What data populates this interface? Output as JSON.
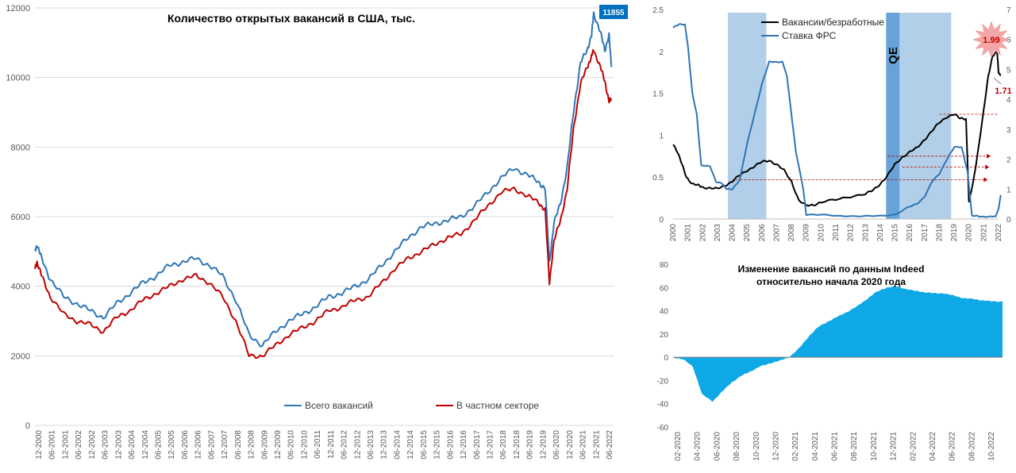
{
  "chart_data": [
    {
      "type": "line",
      "title": "Количество открытых вакансий в США, тыс.",
      "xlabel": "",
      "ylabel": "",
      "ylim": [
        0,
        12000
      ],
      "yticks": [
        0,
        2000,
        4000,
        6000,
        8000,
        10000,
        12000
      ],
      "xtick_labels": [
        "12-2000",
        "06-2001",
        "12-2001",
        "06-2002",
        "12-2002",
        "06-2003",
        "12-2003",
        "06-2004",
        "12-2004",
        "06-2005",
        "12-2005",
        "06-2006",
        "12-2006",
        "06-2007",
        "12-2007",
        "06-2008",
        "12-2008",
        "06-2009",
        "12-2009",
        "06-2010",
        "12-2010",
        "06-2011",
        "12-2011",
        "06-2012",
        "12-2012",
        "06-2013",
        "12-2013",
        "06-2014",
        "12-2014",
        "06-2015",
        "12-2015",
        "06-2016",
        "12-2016",
        "06-2017",
        "12-2017",
        "06-2018",
        "12-2018",
        "06-2019",
        "12-2019",
        "06-2020",
        "12-2020",
        "06-2021",
        "12-2021",
        "06-2022"
      ],
      "grid": true,
      "legend_position": "bottom-center",
      "annotation": {
        "label": "11855",
        "color": "#0070c0"
      },
      "series": [
        {
          "name": "Всего вакансий",
          "color": "#2e75b6",
          "x": [
            2000.92,
            2001.0,
            2001.17,
            2001.5,
            2002.0,
            2002.5,
            2003.0,
            2003.5,
            2004.0,
            2004.5,
            2005.0,
            2005.5,
            2006.0,
            2006.5,
            2007.0,
            2007.5,
            2008.0,
            2008.5,
            2009.0,
            2009.5,
            2010.0,
            2010.5,
            2011.0,
            2011.5,
            2012.0,
            2012.5,
            2013.0,
            2013.5,
            2014.0,
            2014.5,
            2015.0,
            2015.5,
            2016.0,
            2016.5,
            2017.0,
            2017.5,
            2018.0,
            2018.5,
            2019.0,
            2019.5,
            2019.92,
            2020.17,
            2020.33,
            2020.5,
            2020.75,
            2021.0,
            2021.25,
            2021.5,
            2021.75,
            2021.92,
            2022.0,
            2022.25,
            2022.42,
            2022.58,
            2022.67
          ],
          "values": [
            5000,
            5200,
            4800,
            4200,
            3700,
            3500,
            3300,
            3100,
            3500,
            3800,
            4100,
            4300,
            4600,
            4700,
            4800,
            4600,
            4300,
            3600,
            2600,
            2300,
            2700,
            3000,
            3200,
            3400,
            3700,
            3800,
            4000,
            4200,
            4600,
            5000,
            5400,
            5700,
            5800,
            5900,
            6000,
            6300,
            6700,
            7100,
            7400,
            7200,
            7000,
            6800,
            4700,
            5800,
            6400,
            7400,
            9100,
            10400,
            10800,
            11200,
            11855,
            11300,
            10800,
            11200,
            10300
          ]
        },
        {
          "name": "В частном секторе",
          "color": "#c00000",
          "x": [
            2000.92,
            2001.0,
            2001.17,
            2001.5,
            2002.0,
            2002.5,
            2003.0,
            2003.5,
            2004.0,
            2004.5,
            2005.0,
            2005.5,
            2006.0,
            2006.5,
            2007.0,
            2007.5,
            2008.0,
            2008.5,
            2009.0,
            2009.5,
            2010.0,
            2010.5,
            2011.0,
            2011.5,
            2012.0,
            2012.5,
            2013.0,
            2013.5,
            2014.0,
            2014.5,
            2015.0,
            2015.5,
            2016.0,
            2016.5,
            2017.0,
            2017.5,
            2018.0,
            2018.5,
            2019.0,
            2019.5,
            2019.92,
            2020.17,
            2020.33,
            2020.5,
            2020.75,
            2021.0,
            2021.25,
            2021.5,
            2021.75,
            2021.92,
            2022.0,
            2022.25,
            2022.42,
            2022.58,
            2022.67
          ],
          "values": [
            4500,
            4700,
            4300,
            3700,
            3200,
            3000,
            2900,
            2700,
            3100,
            3300,
            3600,
            3800,
            4000,
            4200,
            4300,
            4100,
            3700,
            3000,
            2000,
            2000,
            2300,
            2600,
            2800,
            3000,
            3300,
            3400,
            3600,
            3700,
            4100,
            4500,
            4800,
            5000,
            5200,
            5400,
            5500,
            5900,
            6300,
            6700,
            6800,
            6600,
            6400,
            6200,
            4100,
            5300,
            5900,
            6800,
            8600,
            9800,
            10300,
            10600,
            10800,
            10300,
            9900,
            9300,
            9400
          ]
        }
      ]
    },
    {
      "type": "line",
      "title": "",
      "ylim_left": [
        0,
        2.5
      ],
      "yticks_left": [
        0,
        0.5,
        1,
        1.5,
        2,
        2.5
      ],
      "ylim_right": [
        0,
        7
      ],
      "yticks_right": [
        0,
        1,
        2,
        3,
        4,
        5,
        6,
        7
      ],
      "xlim": [
        2000,
        2022
      ],
      "xtick_labels": [
        "2000",
        "2001",
        "2002",
        "2003",
        "2004",
        "2005",
        "2006",
        "2007",
        "2008",
        "2009",
        "2010",
        "2011",
        "2012",
        "2013",
        "2014",
        "2015",
        "2016",
        "2017",
        "2018",
        "2019",
        "2020",
        "2021",
        "2022"
      ],
      "legend_position": "top-center",
      "shaded_periods": [
        {
          "start": 2003.7,
          "end": 2006.3,
          "label": ""
        },
        {
          "start": 2014.4,
          "end": 2018.8,
          "label": ""
        },
        {
          "start": 2014.4,
          "end": 2015.3,
          "label": "QE"
        }
      ],
      "annotations": [
        {
          "label": "1.99",
          "x": 2021.4,
          "color": "#c00000",
          "burst": true
        },
        {
          "label": "1.71",
          "x": 2021.9,
          "color": "#c00000",
          "burst": false
        }
      ],
      "reference_lines": [
        {
          "y": 1.25,
          "from": 2018.0,
          "to": 2022.0
        },
        {
          "y": 0.75,
          "from": 2014.5,
          "to": 2021.2
        },
        {
          "y": 0.62,
          "from": 2015.5,
          "to": 2021.1
        },
        {
          "y": 0.47,
          "from": 2004.0,
          "to": 2021.0
        }
      ],
      "series": [
        {
          "name": "Вакансии/безработные",
          "color": "#000000",
          "axis": "left",
          "x": [
            2000.0,
            2000.3,
            2000.6,
            2000.9,
            2001.3,
            2001.7,
            2002.0,
            2002.5,
            2003.0,
            2003.5,
            2004.0,
            2004.5,
            2005.0,
            2005.5,
            2006.0,
            2006.5,
            2007.0,
            2007.5,
            2008.0,
            2008.5,
            2009.0,
            2009.5,
            2010.0,
            2011.0,
            2012.0,
            2013.0,
            2013.5,
            2014.0,
            2014.5,
            2015.0,
            2015.5,
            2016.0,
            2016.5,
            2017.0,
            2017.5,
            2018.0,
            2018.5,
            2019.0,
            2019.4,
            2019.8,
            2020.0,
            2020.3,
            2020.6,
            2021.0,
            2021.3,
            2021.6,
            2021.9,
            2022.0,
            2022.15
          ],
          "values": [
            0.9,
            0.8,
            0.65,
            0.5,
            0.42,
            0.4,
            0.38,
            0.37,
            0.36,
            0.4,
            0.45,
            0.52,
            0.58,
            0.63,
            0.68,
            0.7,
            0.65,
            0.58,
            0.45,
            0.22,
            0.16,
            0.17,
            0.2,
            0.23,
            0.27,
            0.3,
            0.34,
            0.42,
            0.52,
            0.65,
            0.74,
            0.8,
            0.85,
            0.95,
            1.05,
            1.15,
            1.22,
            1.25,
            1.2,
            1.2,
            0.2,
            0.45,
            0.8,
            1.3,
            1.7,
            1.95,
            2.0,
            1.75,
            1.71
          ]
        },
        {
          "name": "Ставка ФРС",
          "color": "#2e75b6",
          "axis": "right",
          "x": [
            2000.0,
            2000.4,
            2000.8,
            2001.0,
            2001.3,
            2001.6,
            2001.9,
            2002.5,
            2002.9,
            2003.3,
            2003.6,
            2004.0,
            2004.5,
            2005.0,
            2005.5,
            2006.0,
            2006.5,
            2007.0,
            2007.4,
            2007.7,
            2008.0,
            2008.3,
            2008.8,
            2009.0,
            2010.0,
            2011.0,
            2012.0,
            2013.0,
            2014.0,
            2015.0,
            2015.9,
            2016.5,
            2017.0,
            2017.5,
            2018.0,
            2018.5,
            2019.0,
            2019.5,
            2019.9,
            2020.2,
            2020.5,
            2021.0,
            2021.5,
            2021.8,
            2022.0,
            2022.15
          ],
          "values": [
            6.4,
            6.5,
            6.5,
            5.8,
            4.2,
            3.5,
            1.8,
            1.75,
            1.25,
            1.2,
            1.0,
            1.0,
            1.3,
            2.5,
            3.5,
            4.5,
            5.25,
            5.25,
            5.25,
            4.75,
            3.5,
            2.25,
            1.0,
            0.15,
            0.15,
            0.1,
            0.1,
            0.1,
            0.1,
            0.15,
            0.4,
            0.5,
            0.75,
            1.25,
            1.5,
            2.0,
            2.4,
            2.4,
            1.6,
            0.1,
            0.1,
            0.08,
            0.08,
            0.08,
            0.35,
            0.8
          ]
        }
      ]
    },
    {
      "type": "area",
      "title": "Изменение вакансий по данным Indeed относительно начала 2020 года",
      "title_lines": [
        "Изменение вакансий по данным Indeed",
        "относительно начала 2020 года"
      ],
      "ylim": [
        -60,
        80
      ],
      "yticks": [
        -60,
        -40,
        -20,
        0,
        20,
        40,
        60,
        80
      ],
      "xlim": [
        2020.08,
        2022.92
      ],
      "xtick_labels": [
        "02-2020",
        "04-2020",
        "06-2020",
        "08-2020",
        "10-2020",
        "12-2020",
        "02-2021",
        "04-2021",
        "06-2021",
        "08-2021",
        "10-2021",
        "12-2021",
        "02-2022",
        "04-2022",
        "06-2022",
        "08-2022",
        "10-2022"
      ],
      "fill_color": "#0fa8e6",
      "series": [
        {
          "name": "",
          "x": [
            2020.08,
            2020.17,
            2020.25,
            2020.33,
            2020.42,
            2020.5,
            2020.58,
            2020.67,
            2020.75,
            2020.83,
            2020.92,
            2021.0,
            2021.08,
            2021.17,
            2021.25,
            2021.33,
            2021.42,
            2021.5,
            2021.58,
            2021.67,
            2021.75,
            2021.83,
            2021.92,
            2022.0,
            2022.08,
            2022.17,
            2022.25,
            2022.33,
            2022.42,
            2022.5,
            2022.58,
            2022.67,
            2022.75,
            2022.83,
            2022.92
          ],
          "values": [
            0,
            -2,
            -8,
            -32,
            -38,
            -30,
            -22,
            -16,
            -12,
            -8,
            -5,
            -3,
            0,
            8,
            18,
            26,
            31,
            35,
            39,
            44,
            50,
            56,
            60,
            61,
            59,
            57,
            56,
            55,
            55,
            53,
            51,
            50,
            49,
            48,
            48
          ]
        }
      ]
    }
  ]
}
